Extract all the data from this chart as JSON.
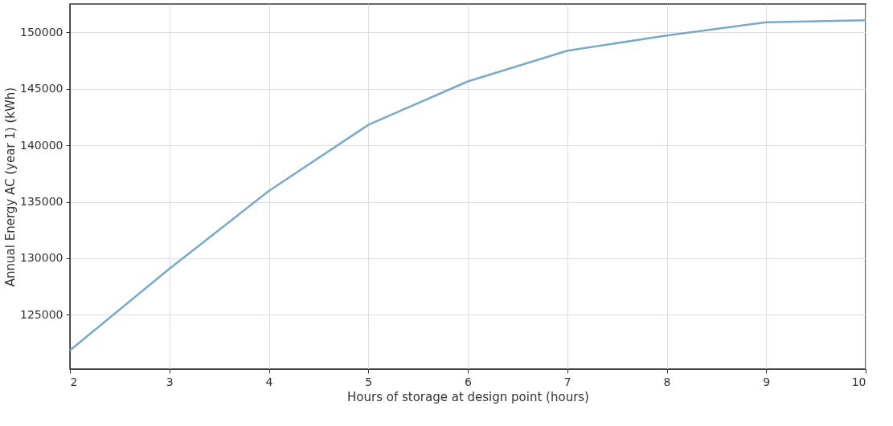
{
  "chart_data": {
    "type": "line",
    "xlabel": "Hours of storage at design point (hours)",
    "ylabel": "Annual Energy AC (year 1) (kWh)",
    "x": [
      2,
      3,
      4,
      5,
      6,
      7,
      8,
      9,
      10
    ],
    "series": [
      {
        "color": "#7aaac8",
        "values": [
          121850,
          129070,
          135960,
          141810,
          145650,
          148360,
          149720,
          150880,
          151060
        ]
      }
    ],
    "xlim": [
      2,
      10
    ],
    "xticks": [
      2,
      3,
      4,
      5,
      6,
      7,
      8,
      9,
      10
    ],
    "ylim": [
      120200,
      152500
    ],
    "yticks": [
      125000,
      130000,
      135000,
      140000,
      145000,
      150000
    ],
    "grid": true,
    "marker": "none",
    "line_style": "solid",
    "legend": false
  }
}
